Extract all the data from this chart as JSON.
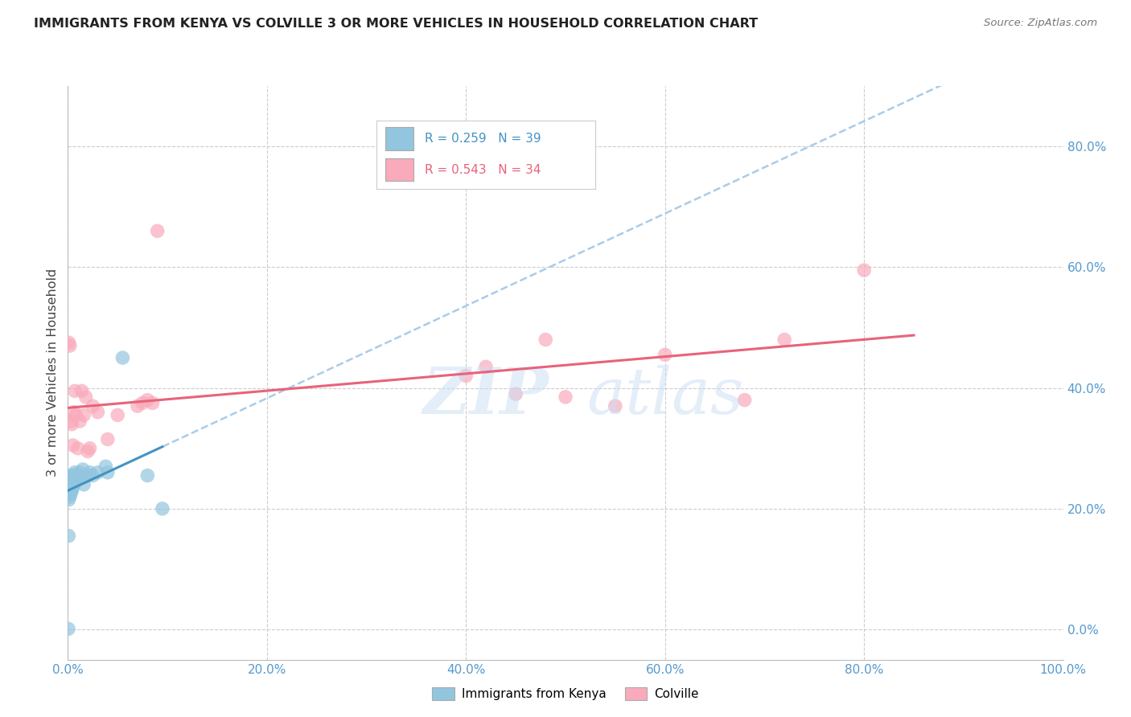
{
  "title": "IMMIGRANTS FROM KENYA VS COLVILLE 3 OR MORE VEHICLES IN HOUSEHOLD CORRELATION CHART",
  "source": "Source: ZipAtlas.com",
  "ylabel_label": "3 or more Vehicles in Household",
  "legend1_label": "Immigrants from Kenya",
  "legend2_label": "Colville",
  "R1": 0.259,
  "N1": 39,
  "R2": 0.543,
  "N2": 34,
  "color1": "#92C5DE",
  "color2": "#F9AABB",
  "line1_color": "#4393C3",
  "line2_color": "#E8637A",
  "dashed_line_color": "#AACCE8",
  "xlim": [
    0.0,
    1.0
  ],
  "ylim": [
    -0.05,
    0.9
  ],
  "xtick_vals": [
    0.0,
    0.2,
    0.4,
    0.6,
    0.8,
    1.0
  ],
  "ytick_vals": [
    0.0,
    0.2,
    0.4,
    0.6,
    0.8
  ],
  "kenya_x": [
    0.0005,
    0.0008,
    0.001,
    0.001,
    0.001,
    0.002,
    0.002,
    0.002,
    0.002,
    0.003,
    0.003,
    0.003,
    0.003,
    0.004,
    0.004,
    0.004,
    0.005,
    0.005,
    0.005,
    0.006,
    0.006,
    0.007,
    0.007,
    0.008,
    0.009,
    0.01,
    0.011,
    0.012,
    0.015,
    0.016,
    0.02,
    0.022,
    0.025,
    0.03,
    0.038,
    0.04,
    0.055,
    0.08,
    0.095
  ],
  "kenya_y": [
    0.001,
    0.155,
    0.215,
    0.225,
    0.235,
    0.22,
    0.23,
    0.235,
    0.24,
    0.225,
    0.23,
    0.245,
    0.25,
    0.23,
    0.24,
    0.255,
    0.235,
    0.245,
    0.255,
    0.24,
    0.25,
    0.255,
    0.26,
    0.245,
    0.25,
    0.255,
    0.25,
    0.26,
    0.265,
    0.24,
    0.255,
    0.26,
    0.255,
    0.26,
    0.27,
    0.26,
    0.45,
    0.255,
    0.2
  ],
  "colville_x": [
    0.001,
    0.002,
    0.003,
    0.004,
    0.005,
    0.006,
    0.007,
    0.008,
    0.01,
    0.012,
    0.014,
    0.016,
    0.018,
    0.02,
    0.022,
    0.025,
    0.03,
    0.04,
    0.05,
    0.07,
    0.075,
    0.08,
    0.085,
    0.09,
    0.4,
    0.42,
    0.45,
    0.48,
    0.5,
    0.55,
    0.6,
    0.68,
    0.72,
    0.8
  ],
  "colville_y": [
    0.475,
    0.47,
    0.345,
    0.34,
    0.305,
    0.36,
    0.395,
    0.355,
    0.3,
    0.345,
    0.395,
    0.355,
    0.385,
    0.295,
    0.3,
    0.37,
    0.36,
    0.315,
    0.355,
    0.37,
    0.375,
    0.38,
    0.375,
    0.66,
    0.42,
    0.435,
    0.39,
    0.48,
    0.385,
    0.37,
    0.455,
    0.38,
    0.48,
    0.595
  ]
}
